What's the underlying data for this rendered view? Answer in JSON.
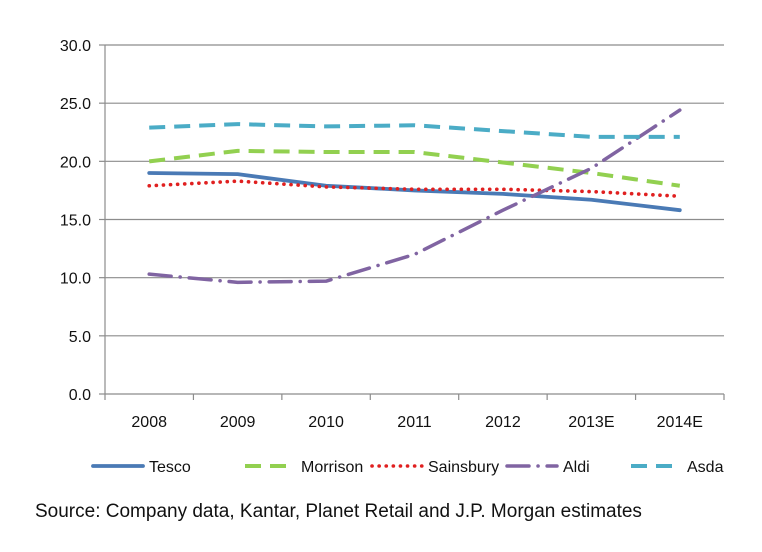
{
  "chart_data": {
    "type": "line",
    "categories": [
      "2008",
      "2009",
      "2010",
      "2011",
      "2012",
      "2013E",
      "2014E"
    ],
    "ylim": [
      0,
      30
    ],
    "yticks": [
      "0.0",
      "5.0",
      "10.0",
      "15.0",
      "20.0",
      "25.0",
      "30.0"
    ],
    "grid": true,
    "legend_position": "bottom",
    "series": [
      {
        "name": "Tesco",
        "values": [
          19.0,
          18.9,
          17.9,
          17.5,
          17.2,
          16.7,
          15.8
        ],
        "color": "#4a7ab5",
        "style": "solid"
      },
      {
        "name": "Morrison",
        "values": [
          20.0,
          20.9,
          20.8,
          20.8,
          19.9,
          19.0,
          17.9
        ],
        "color": "#92d050",
        "style": "dashed"
      },
      {
        "name": "Sainsbury",
        "values": [
          17.9,
          18.3,
          17.8,
          17.6,
          17.6,
          17.4,
          17.0
        ],
        "color": "#e02020",
        "style": "dotted"
      },
      {
        "name": "Aldi",
        "values": [
          10.3,
          9.6,
          9.7,
          12.0,
          15.8,
          19.4,
          24.4
        ],
        "color": "#8064a2",
        "style": "dash-dot"
      },
      {
        "name": "Asda",
        "values": [
          22.9,
          23.2,
          23.0,
          23.1,
          22.6,
          22.1,
          22.1
        ],
        "color": "#4bacc6",
        "style": "dashed"
      }
    ]
  },
  "source_text": "Source: Company data, Kantar, Planet Retail and J.P. Morgan estimates"
}
